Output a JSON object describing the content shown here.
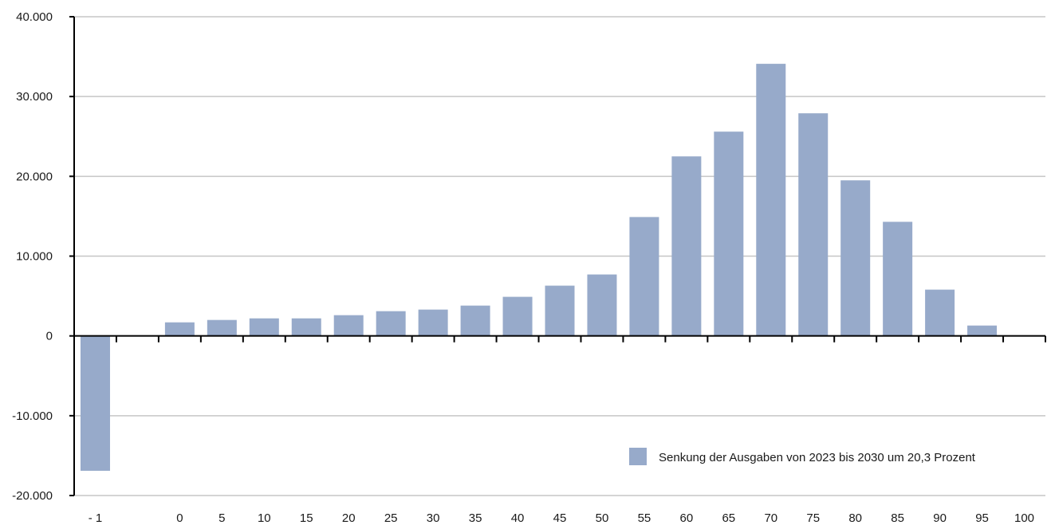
{
  "chart_data": {
    "type": "bar",
    "categories": [
      "- 1",
      "",
      "0",
      "5",
      "10",
      "15",
      "20",
      "25",
      "30",
      "35",
      "40",
      "45",
      "50",
      "55",
      "60",
      "65",
      "70",
      "75",
      "80",
      "85",
      "90",
      "95",
      "100"
    ],
    "series": [
      {
        "name": "Senkung der Ausgaben von 2023 bis 2030 um 20,3 Prozent",
        "values": [
          -16900,
          null,
          1700,
          2000,
          2200,
          2200,
          2600,
          3100,
          3300,
          3800,
          4900,
          6300,
          7700,
          14900,
          22500,
          25600,
          34100,
          27900,
          19500,
          14300,
          5800,
          1300,
          null
        ]
      }
    ],
    "ylim": [
      -20000,
      40000
    ],
    "yticks": [
      40000,
      30000,
      20000,
      10000,
      0,
      -10000,
      -20000
    ],
    "ytick_labels": [
      "40.000",
      "30.000",
      "20.000",
      "10.000",
      "0",
      "-10.000",
      "-20.000"
    ],
    "grid": true,
    "legend_position": "bottom-right",
    "bar_color": "#97aaca",
    "title": "",
    "xlabel": "",
    "ylabel": ""
  }
}
